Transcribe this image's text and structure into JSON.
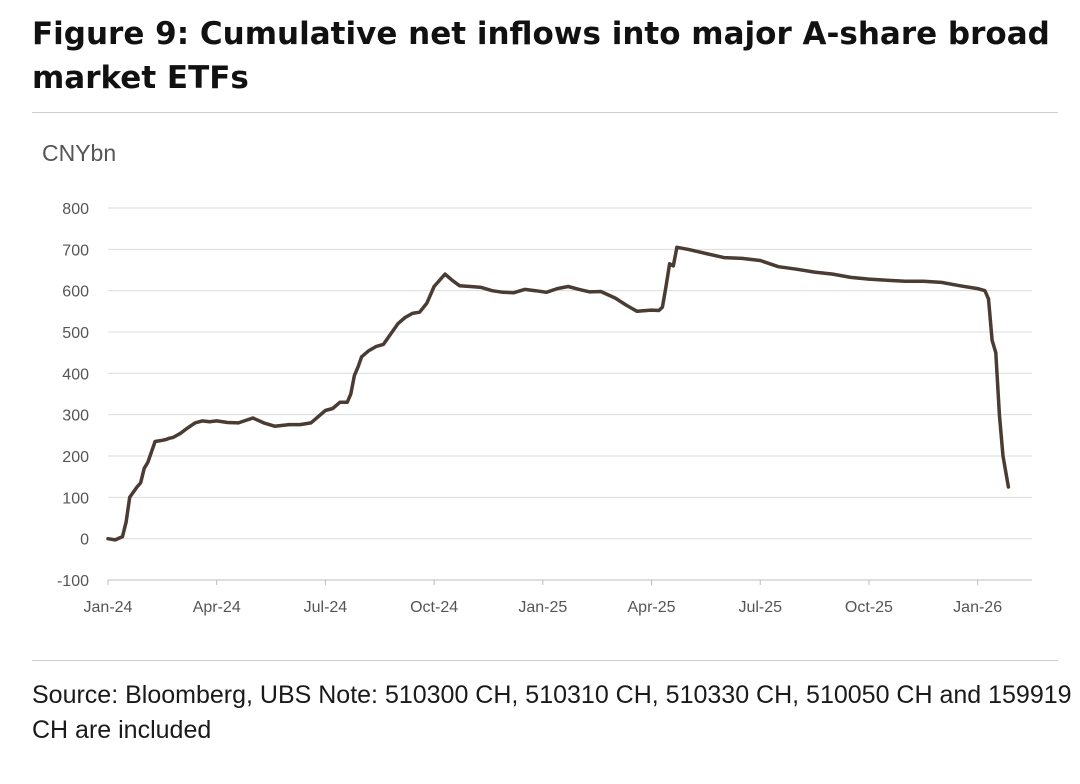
{
  "figure": {
    "title": "Figure 9: Cumulative net inflows into major A-share broad market ETFs",
    "source": "Source: Bloomberg, UBS Note: 510300 CH, 510310 CH, 510330 CH, 510050 CH and 159919 CH are included"
  },
  "chart_data": {
    "type": "line",
    "title": "Cumulative net inflows into major A-share broad market ETFs",
    "ylabel": "CNYbn",
    "xlabel": "",
    "ylim": [
      -100,
      800
    ],
    "yticks": [
      -100,
      0,
      100,
      200,
      300,
      400,
      500,
      600,
      700,
      800
    ],
    "ytick_labels": [
      "-100",
      "0",
      "100",
      "200",
      "300",
      "400",
      "500",
      "600",
      "700",
      "800"
    ],
    "xlim": [
      0,
      25.5
    ],
    "xticks": [
      {
        "pos": 0,
        "label": "Jan-24"
      },
      {
        "pos": 3,
        "label": "Apr-24"
      },
      {
        "pos": 6,
        "label": "Jul-24"
      },
      {
        "pos": 9,
        "label": "Oct-24"
      },
      {
        "pos": 12,
        "label": "Jan-25"
      },
      {
        "pos": 15,
        "label": "Apr-25"
      },
      {
        "pos": 18,
        "label": "Jul-25"
      },
      {
        "pos": 21,
        "label": "Oct-25"
      },
      {
        "pos": 24,
        "label": "Jan-26"
      }
    ],
    "grid": true,
    "line_color": "#4a3b33",
    "series": [
      {
        "name": "Cumulative net inflows (CNYbn)",
        "x": [
          0,
          0.2,
          0.4,
          0.5,
          0.6,
          0.8,
          0.9,
          1.0,
          1.1,
          1.3,
          1.5,
          1.6,
          1.7,
          1.8,
          2.0,
          2.2,
          2.4,
          2.6,
          2.8,
          3.0,
          3.3,
          3.6,
          4.0,
          4.3,
          4.6,
          5.0,
          5.3,
          5.6,
          6.0,
          6.2,
          6.4,
          6.6,
          6.7,
          6.8,
          6.9,
          7.0,
          7.2,
          7.4,
          7.6,
          7.8,
          8.0,
          8.2,
          8.4,
          8.6,
          8.8,
          9.0,
          9.3,
          9.5,
          9.7,
          10.0,
          10.3,
          10.6,
          10.9,
          11.2,
          11.5,
          11.8,
          12.1,
          12.4,
          12.7,
          13.0,
          13.3,
          13.6,
          14.0,
          14.3,
          14.6,
          15.0,
          15.2,
          15.3,
          15.4,
          15.5,
          15.6,
          15.7,
          16.0,
          16.5,
          17.0,
          17.5,
          18.0,
          18.5,
          19.0,
          19.5,
          20.0,
          20.5,
          21.0,
          21.5,
          22.0,
          22.5,
          23.0,
          23.5,
          24.0,
          24.2,
          24.3,
          24.4,
          24.5,
          24.6,
          24.7,
          24.8,
          24.85
        ],
        "y": [
          0,
          -3,
          5,
          40,
          100,
          125,
          135,
          170,
          185,
          235,
          238,
          240,
          243,
          245,
          255,
          268,
          280,
          285,
          283,
          285,
          281,
          280,
          292,
          280,
          272,
          276,
          276,
          280,
          310,
          315,
          330,
          330,
          350,
          395,
          415,
          440,
          455,
          465,
          470,
          495,
          520,
          535,
          545,
          548,
          570,
          610,
          640,
          625,
          612,
          610,
          608,
          600,
          596,
          595,
          603,
          600,
          596,
          605,
          610,
          603,
          597,
          598,
          582,
          565,
          550,
          553,
          552,
          560,
          610,
          665,
          660,
          705,
          700,
          690,
          680,
          678,
          673,
          658,
          652,
          645,
          640,
          632,
          628,
          625,
          623,
          623,
          620,
          612,
          605,
          600,
          580,
          480,
          450,
          300,
          200,
          150,
          125
        ]
      }
    ]
  }
}
